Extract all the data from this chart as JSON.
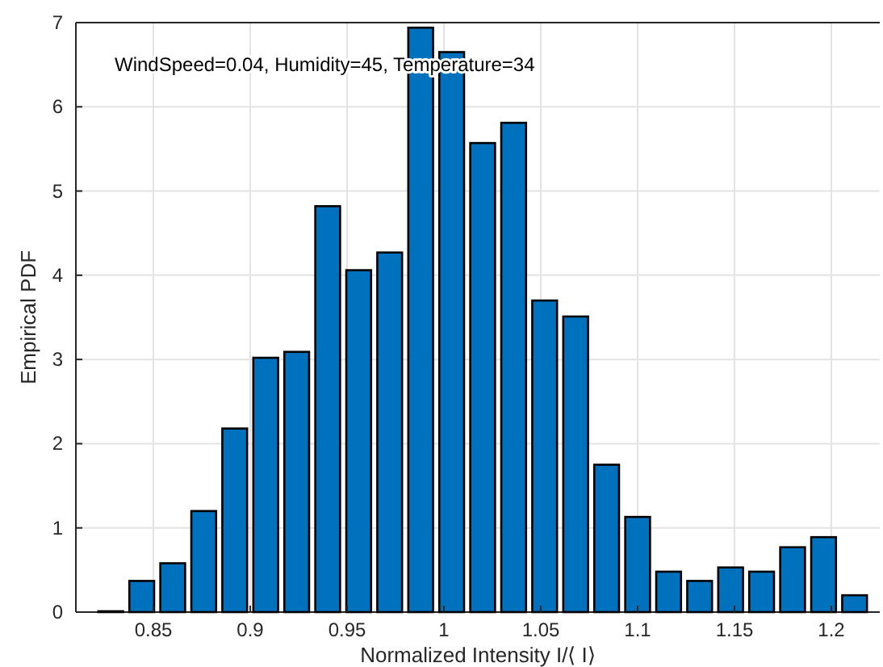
{
  "chart_data": {
    "type": "histogram",
    "xlabel": "Normalized Intensity I/⟨ I⟩",
    "ylabel": "Empirical PDF",
    "annotations": [
      "WindSpeed=0.04, Humidity=45, Temperature=34"
    ],
    "bins": [
      0.82,
      0.836,
      0.852,
      0.868,
      0.884,
      0.9,
      0.916,
      0.932,
      0.948,
      0.964,
      0.98,
      0.996,
      1.012,
      1.028,
      1.044,
      1.06,
      1.076,
      1.092,
      1.108,
      1.124,
      1.14,
      1.156,
      1.172,
      1.188,
      1.204,
      1.22
    ],
    "values": [
      0.01,
      0.37,
      0.58,
      1.2,
      2.18,
      3.02,
      3.09,
      4.82,
      4.06,
      4.27,
      6.94,
      6.65,
      5.57,
      5.81,
      3.7,
      3.51,
      1.75,
      1.13,
      0.48,
      0.37,
      0.53,
      0.48,
      0.77,
      0.89,
      0.2
    ],
    "color": "#0072bd",
    "xlim": [
      0.81,
      1.225
    ],
    "xticks": [
      0.85,
      0.9,
      0.95,
      1,
      1.05,
      1.1,
      1.15,
      1.2
    ],
    "ylim": [
      0,
      7
    ],
    "yticks": [
      0,
      1,
      2,
      3,
      4,
      5,
      6,
      7
    ],
    "grid": true
  }
}
